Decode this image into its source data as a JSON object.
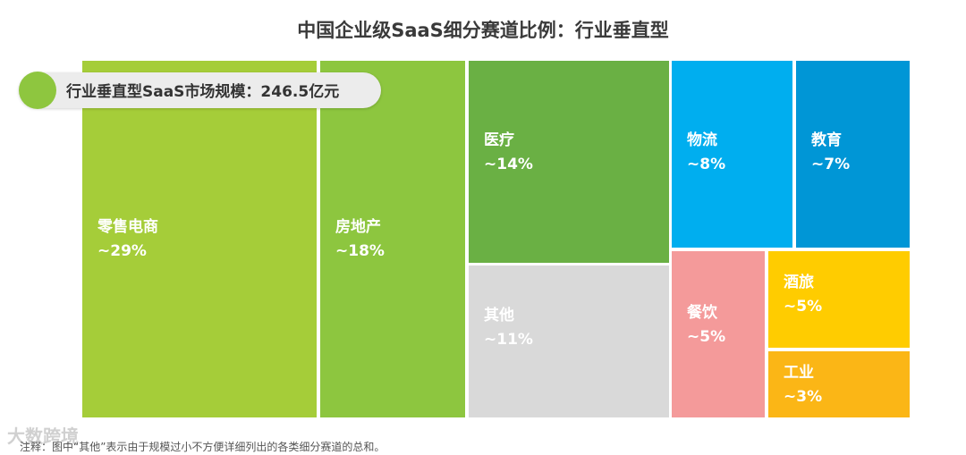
{
  "title": "中国企业级SaaS细分赛道比例：行业垂直型",
  "badge": {
    "text": "行业垂直型SaaS市场规模：246.5亿元"
  },
  "footnote": "注释：图中“其他”表示由于规模过小不方便详细列出的各类细分赛道的总和。",
  "watermark": "大数跨境",
  "chart_data": {
    "type": "treemap",
    "title": "中国企业级SaaS细分赛道比例：行业垂直型",
    "total_label": "行业垂直型SaaS市场规模：246.5亿元",
    "total_value": 246.5,
    "unit": "亿元",
    "segments": [
      {
        "name": "零售电商",
        "label": "~29%",
        "share": 29,
        "color": "#a5cd39"
      },
      {
        "name": "房地产",
        "label": "~18%",
        "share": 18,
        "color": "#8dc63f"
      },
      {
        "name": "医疗",
        "label": "~14%",
        "share": 14,
        "color": "#6ab044"
      },
      {
        "name": "其他",
        "label": "~11%",
        "share": 11,
        "color": "#d9d9d9"
      },
      {
        "name": "物流",
        "label": "~8%",
        "share": 8,
        "color": "#00aeef"
      },
      {
        "name": "教育",
        "label": "~7%",
        "share": 7,
        "color": "#0096d6"
      },
      {
        "name": "餐饮",
        "label": "~5%",
        "share": 5,
        "color": "#f49a9a"
      },
      {
        "name": "酒旅",
        "label": "~5%",
        "share": 5,
        "color": "#ffcc00"
      },
      {
        "name": "工业",
        "label": "~3%",
        "share": 3,
        "color": "#fbb616"
      }
    ]
  }
}
